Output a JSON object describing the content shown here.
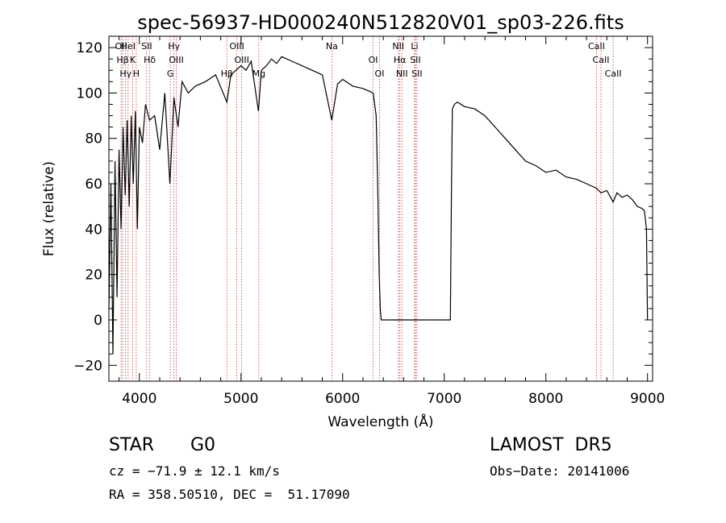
{
  "chart_data": {
    "type": "line",
    "title": "spec-56937-HD000240N512820V01_sp03-226.fits",
    "xlabel": "Wavelength (Å)",
    "ylabel": "Flux (relative)",
    "xlim": [
      3700,
      9050
    ],
    "ylim": [
      -27,
      125
    ],
    "xticks": [
      4000,
      5000,
      6000,
      7000,
      8000,
      9000
    ],
    "yticks": [
      -20,
      0,
      20,
      40,
      60,
      80,
      100,
      120
    ],
    "grid": false,
    "series": [
      {
        "x": [
          3700,
          3720,
          3740,
          3760,
          3780,
          3800,
          3820,
          3840,
          3860,
          3880,
          3900,
          3920,
          3940,
          3960,
          3980,
          4000,
          4030,
          4060,
          4100,
          4150,
          4200,
          4250,
          4300,
          4340,
          4380,
          4420,
          4480,
          4550,
          4650,
          4750,
          4861,
          4900,
          4950,
          5000,
          5050,
          5100,
          5172,
          5200,
          5250,
          5300,
          5350,
          5400,
          5500,
          5600,
          5700,
          5800,
          5893,
          5950,
          6000,
          6100,
          6200,
          6250,
          6300,
          6330,
          6345,
          6360,
          6370,
          6380,
          7060,
          7070,
          7080,
          7100,
          7130,
          7200,
          7300,
          7400,
          7500,
          7600,
          7700,
          7800,
          7900,
          8000,
          8100,
          8200,
          8300,
          8400,
          8500,
          8542,
          8600,
          8662,
          8700,
          8750,
          8800,
          8850,
          8900,
          8950,
          8970,
          8990,
          9000
        ],
        "y": [
          5,
          60,
          -15,
          70,
          10,
          75,
          40,
          85,
          55,
          88,
          50,
          90,
          60,
          92,
          40,
          85,
          78,
          95,
          88,
          90,
          75,
          100,
          60,
          98,
          85,
          105,
          100,
          103,
          105,
          108,
          96,
          108,
          110,
          112,
          110,
          114,
          92,
          110,
          112,
          115,
          113,
          116,
          114,
          112,
          110,
          108,
          88,
          104,
          106,
          103,
          102,
          101,
          100,
          90,
          60,
          20,
          5,
          0,
          0,
          55,
          93,
          95,
          96,
          94,
          93,
          90,
          85,
          80,
          75,
          70,
          68,
          65,
          66,
          63,
          62,
          60,
          58,
          56,
          57,
          52,
          56,
          54,
          55,
          53,
          50,
          49,
          48,
          40,
          0
        ]
      }
    ],
    "lines": [
      {
        "x": 3820,
        "label": "OII"
      },
      {
        "x": 3835,
        "label": "Hβ"
      },
      {
        "x": 3865,
        "label": "Hγ"
      },
      {
        "x": 3889,
        "label": "HeI"
      },
      {
        "x": 3934,
        "label": "K"
      },
      {
        "x": 3969,
        "label": "H"
      },
      {
        "x": 4072,
        "label": "SII"
      },
      {
        "x": 4102,
        "label": "Hδ"
      },
      {
        "x": 4304,
        "label": "G"
      },
      {
        "x": 4340,
        "label": "Hγ"
      },
      {
        "x": 4363,
        "label": "OIII"
      },
      {
        "x": 4861,
        "label": "Hβ"
      },
      {
        "x": 4959,
        "label": "OIII"
      },
      {
        "x": 5007,
        "label": "OIII"
      },
      {
        "x": 5175,
        "label": "Mg"
      },
      {
        "x": 5894,
        "label": "Na"
      },
      {
        "x": 6300,
        "label": "OI"
      },
      {
        "x": 6363,
        "label": "OI"
      },
      {
        "x": 6548,
        "label": "NII"
      },
      {
        "x": 6563,
        "label": "Hα"
      },
      {
        "x": 6583,
        "label": "NII"
      },
      {
        "x": 6708,
        "label": "Li"
      },
      {
        "x": 6716,
        "label": "SII"
      },
      {
        "x": 6731,
        "label": "SII"
      },
      {
        "x": 8498,
        "label": "CaII"
      },
      {
        "x": 8542,
        "label": "CaII"
      },
      {
        "x": 8662,
        "label": "CaII"
      }
    ]
  },
  "info": {
    "objtype": "STAR",
    "subclass": "G0",
    "survey": "LAMOST  DR5",
    "cz": "cz = −71.9 ± 12.1 km/s",
    "obsdate": "Obs−Date: 20141006",
    "radec": "RA = 358.50510, DEC =  51.17090"
  }
}
